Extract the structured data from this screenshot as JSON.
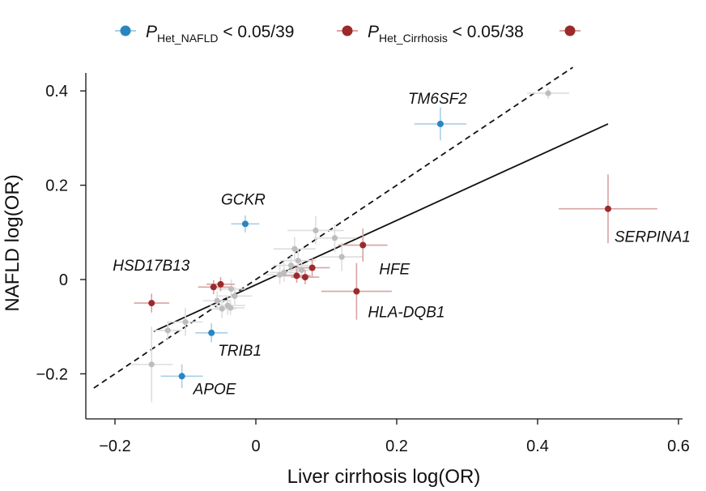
{
  "chart_data": {
    "type": "scatter",
    "xlabel": "Liver cirrhosis log(OR)",
    "ylabel": "NAFLD log(OR)",
    "xlim": [
      -0.23,
      0.61
    ],
    "ylim": [
      -0.29,
      0.46
    ],
    "xticks": [
      -0.2,
      0,
      0.2,
      0.4,
      0.6
    ],
    "xtick_labels": [
      "−0.2",
      "0",
      "0.2",
      "0.4",
      "0.6"
    ],
    "yticks": [
      -0.2,
      0,
      0.2,
      0.4
    ],
    "ytick_labels": [
      "−0.2",
      "0",
      "0.2",
      "0.4"
    ],
    "legend": [
      {
        "symbol": "P",
        "subscript": "Het_NAFLD",
        "suffix": "< 0.05/39",
        "color": "#2a86bf"
      },
      {
        "symbol": "P",
        "subscript": "Het_Cirrhosis",
        "suffix": "< 0.05/38",
        "color": "#9c2a2a"
      },
      {
        "symbol": "",
        "subscript": "",
        "suffix": "",
        "color": "#9c2a2a"
      }
    ],
    "lines": [
      {
        "name": "identity",
        "style": "dashed",
        "x": [
          -0.23,
          0.45
        ],
        "y": [
          -0.23,
          0.45
        ]
      },
      {
        "name": "regression",
        "style": "solid",
        "x": [
          -0.145,
          0.5
        ],
        "y": [
          -0.11,
          0.33
        ]
      }
    ],
    "points": [
      {
        "x": 0.262,
        "y": 0.33,
        "xerr": 0.037,
        "yerr": 0.035,
        "group": "NAFLD",
        "label": "TM6SF2"
      },
      {
        "x": -0.015,
        "y": 0.118,
        "xerr": 0.02,
        "yerr": 0.018,
        "group": "NAFLD",
        "label": "GCKR"
      },
      {
        "x": -0.063,
        "y": -0.113,
        "xerr": 0.023,
        "yerr": 0.02,
        "group": "NAFLD",
        "label": "TRIB1"
      },
      {
        "x": -0.105,
        "y": -0.205,
        "xerr": 0.03,
        "yerr": 0.025,
        "group": "NAFLD",
        "label": "APOE"
      },
      {
        "x": 0.5,
        "y": 0.15,
        "xerr": 0.07,
        "yerr": 0.073,
        "group": "Cirrhosis",
        "label": "SERPINA1"
      },
      {
        "x": 0.152,
        "y": 0.073,
        "xerr": 0.035,
        "yerr": 0.035,
        "group": "Cirrhosis",
        "label": "HFE"
      },
      {
        "x": 0.143,
        "y": -0.025,
        "xerr": 0.05,
        "yerr": 0.06,
        "group": "Cirrhosis",
        "label": "HLA-DQB1"
      },
      {
        "x": -0.148,
        "y": -0.05,
        "xerr": 0.025,
        "yerr": 0.02,
        "group": "Cirrhosis",
        "label": "HSD17B13"
      },
      {
        "x": -0.06,
        "y": -0.016,
        "xerr": 0.022,
        "yerr": 0.015,
        "group": "Cirrhosis",
        "label": ""
      },
      {
        "x": -0.05,
        "y": -0.01,
        "xerr": 0.02,
        "yerr": 0.015,
        "group": "Cirrhosis",
        "label": ""
      },
      {
        "x": 0.08,
        "y": 0.025,
        "xerr": 0.025,
        "yerr": 0.02,
        "group": "Cirrhosis",
        "label": ""
      },
      {
        "x": 0.058,
        "y": 0.008,
        "xerr": 0.02,
        "yerr": 0.015,
        "group": "Cirrhosis",
        "label": ""
      },
      {
        "x": 0.07,
        "y": 0.005,
        "xerr": 0.02,
        "yerr": 0.015,
        "group": "Cirrhosis",
        "label": ""
      },
      {
        "x": 0.415,
        "y": 0.395,
        "xerr": 0.03,
        "yerr": 0.012,
        "group": "none",
        "label": ""
      },
      {
        "x": 0.085,
        "y": 0.104,
        "xerr": 0.04,
        "yerr": 0.03,
        "group": "none",
        "label": ""
      },
      {
        "x": 0.112,
        "y": 0.088,
        "xerr": 0.03,
        "yerr": 0.03,
        "group": "none",
        "label": ""
      },
      {
        "x": 0.122,
        "y": 0.048,
        "xerr": 0.03,
        "yerr": 0.03,
        "group": "none",
        "label": ""
      },
      {
        "x": 0.055,
        "y": 0.065,
        "xerr": 0.03,
        "yerr": 0.025,
        "group": "none",
        "label": ""
      },
      {
        "x": 0.06,
        "y": 0.04,
        "xerr": 0.025,
        "yerr": 0.025,
        "group": "none",
        "label": ""
      },
      {
        "x": 0.05,
        "y": 0.03,
        "xerr": 0.025,
        "yerr": 0.02,
        "group": "none",
        "label": ""
      },
      {
        "x": 0.04,
        "y": 0.015,
        "xerr": 0.02,
        "yerr": 0.02,
        "group": "none",
        "label": ""
      },
      {
        "x": 0.034,
        "y": 0.01,
        "xerr": 0.02,
        "yerr": 0.02,
        "group": "none",
        "label": ""
      },
      {
        "x": 0.065,
        "y": 0.02,
        "xerr": 0.02,
        "yerr": 0.02,
        "group": "none",
        "label": ""
      },
      {
        "x": -0.035,
        "y": -0.02,
        "xerr": 0.02,
        "yerr": 0.02,
        "group": "none",
        "label": ""
      },
      {
        "x": -0.03,
        "y": -0.035,
        "xerr": 0.025,
        "yerr": 0.02,
        "group": "none",
        "label": ""
      },
      {
        "x": -0.04,
        "y": -0.055,
        "xerr": 0.025,
        "yerr": 0.02,
        "group": "none",
        "label": ""
      },
      {
        "x": -0.048,
        "y": -0.062,
        "xerr": 0.02,
        "yerr": 0.02,
        "group": "none",
        "label": ""
      },
      {
        "x": -0.036,
        "y": -0.06,
        "xerr": 0.02,
        "yerr": 0.015,
        "group": "none",
        "label": ""
      },
      {
        "x": -0.055,
        "y": -0.045,
        "xerr": 0.02,
        "yerr": 0.02,
        "group": "none",
        "label": ""
      },
      {
        "x": -0.1,
        "y": -0.09,
        "xerr": 0.025,
        "yerr": 0.03,
        "group": "none",
        "label": ""
      },
      {
        "x": -0.125,
        "y": -0.108,
        "xerr": 0.02,
        "yerr": 0.02,
        "group": "none",
        "label": ""
      },
      {
        "x": -0.148,
        "y": -0.18,
        "xerr": 0.03,
        "yerr": 0.08,
        "group": "none",
        "label": ""
      }
    ],
    "colors": {
      "NAFLD": "#2a86bf",
      "Cirrhosis": "#9c2a2a",
      "none": "#bdbdbd"
    },
    "error_colors": {
      "NAFLD": "#a8cfe7",
      "Cirrhosis": "#d9a2a2",
      "none": "#dedede"
    }
  }
}
